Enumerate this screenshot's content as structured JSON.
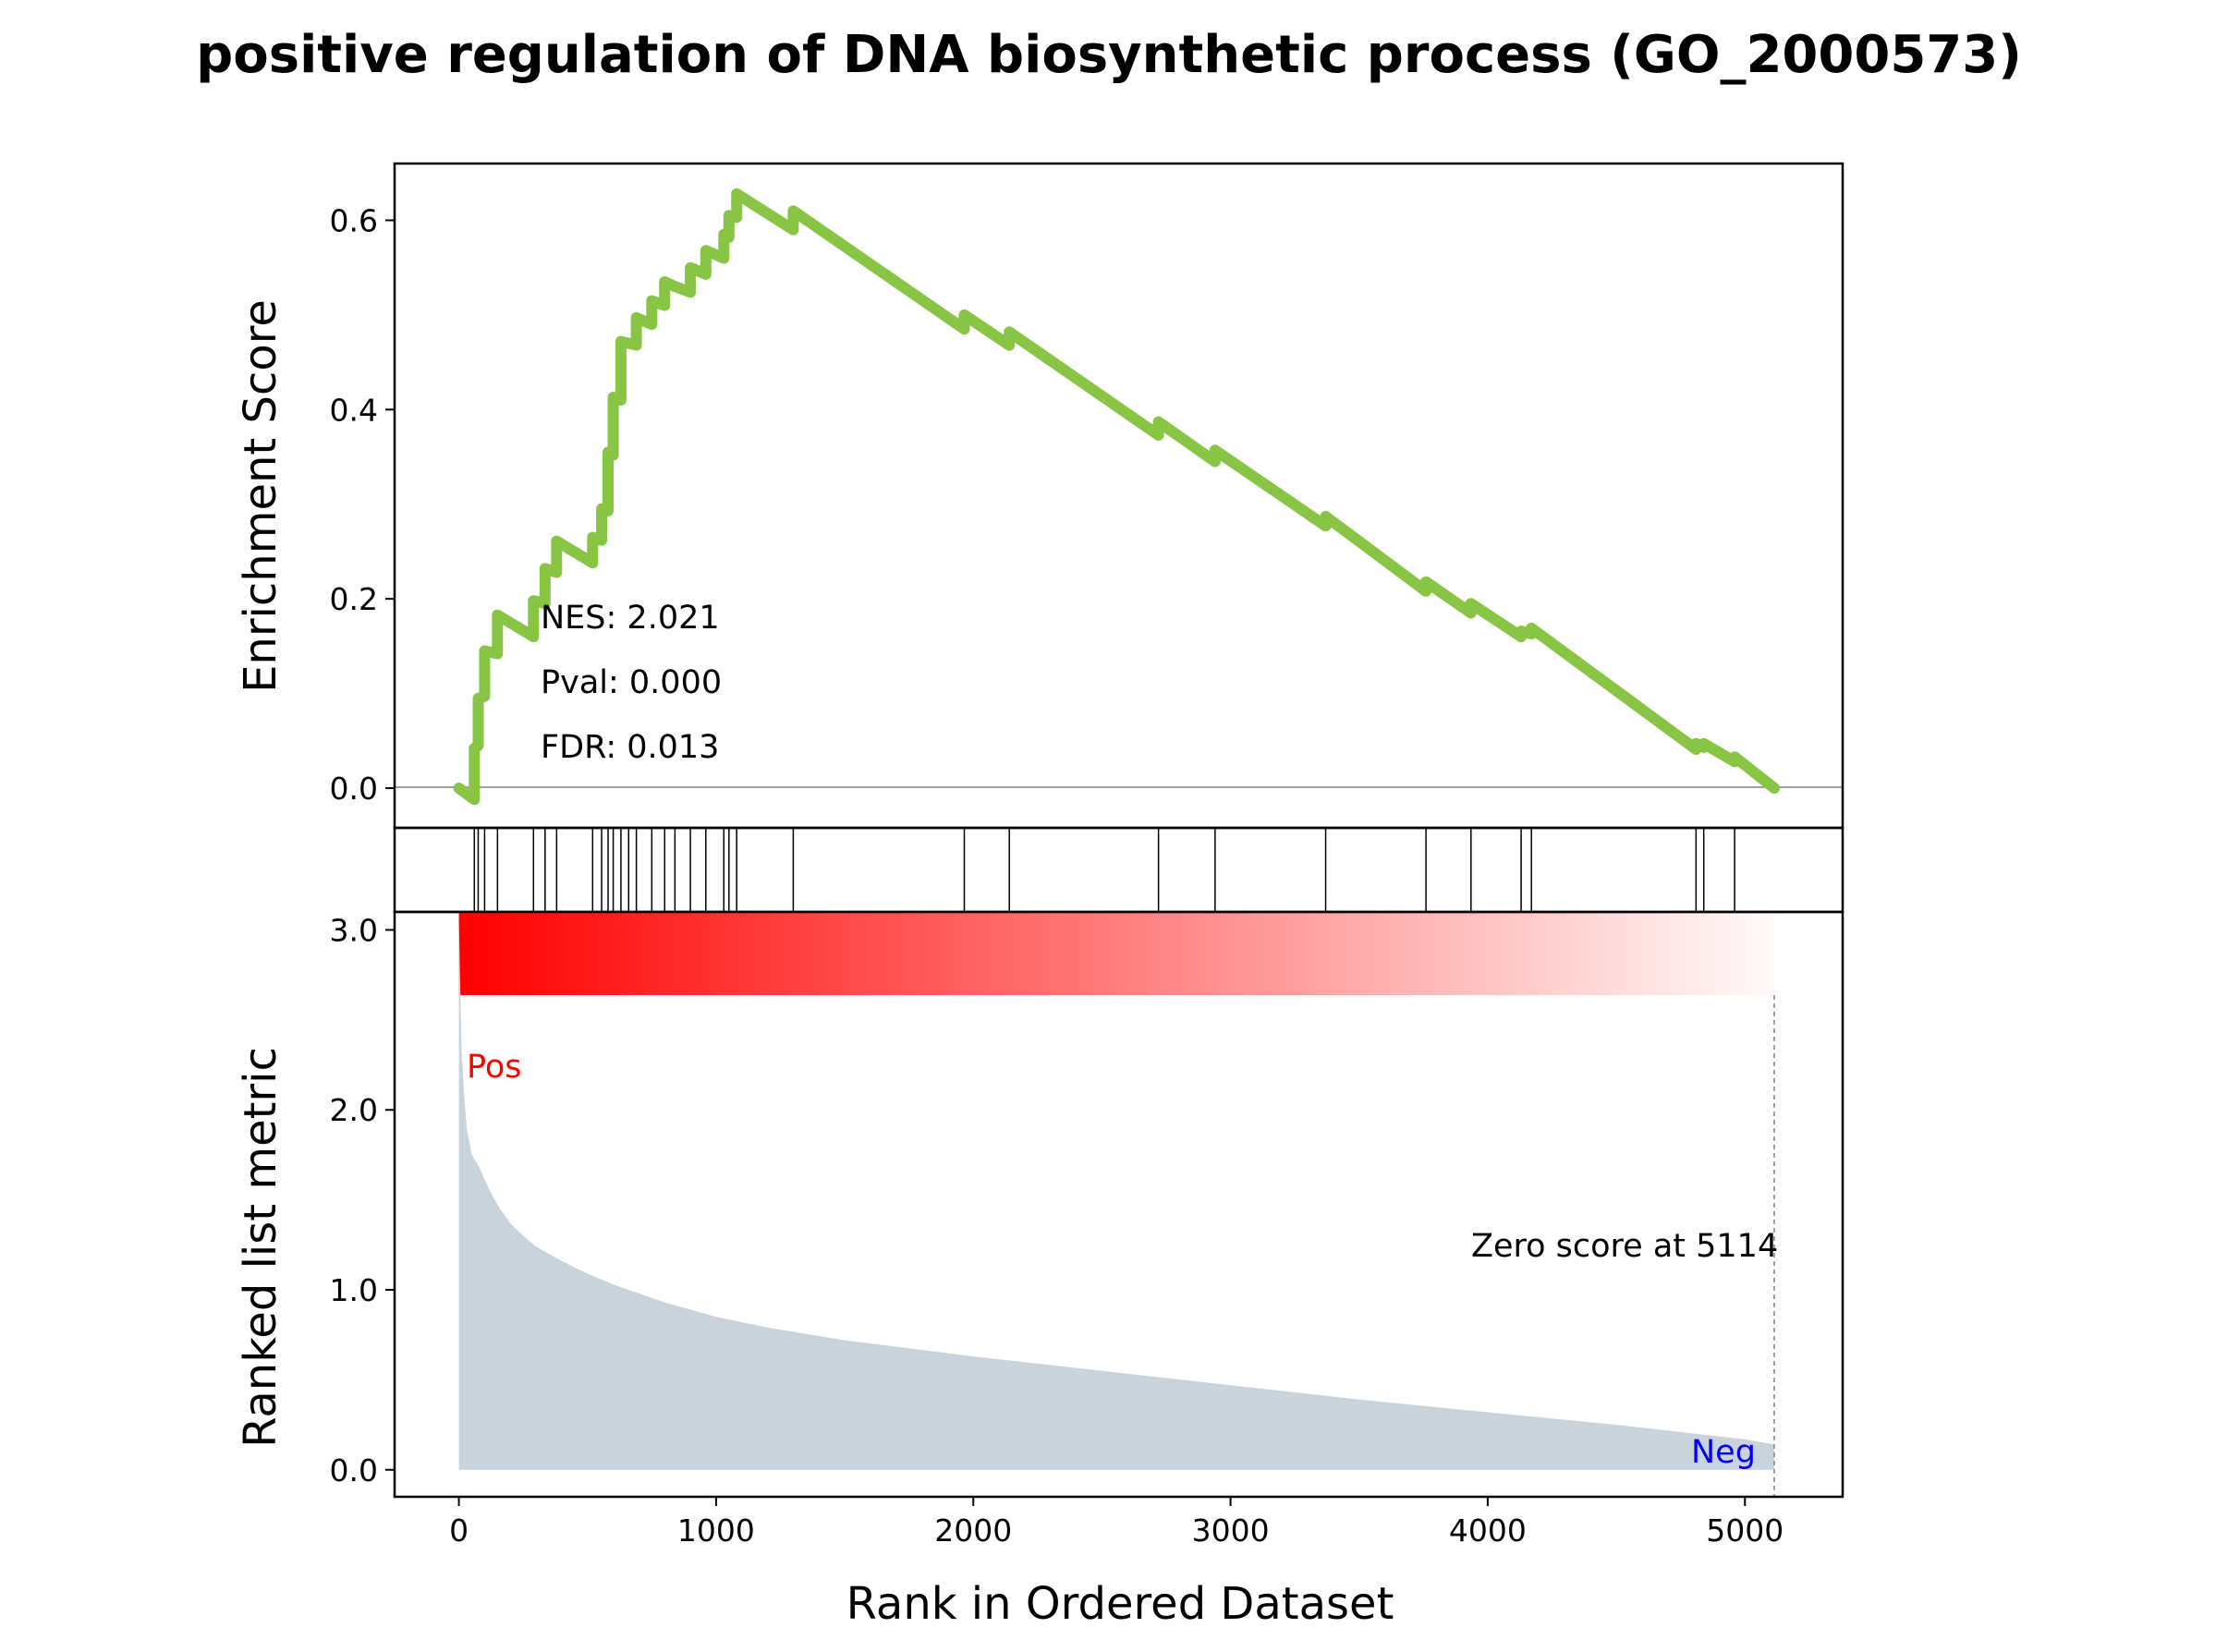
{
  "colors": {
    "es_line": "#88c544",
    "metric_fill": "#c9d3dc",
    "pos": "#ff0000",
    "neg": "#0000ff",
    "zero_line": "#808080"
  },
  "chart_data": {
    "type": "line",
    "title": "positive regulation of DNA biosynthetic process (GO_2000573)",
    "xlabel": "Rank in Ordered Dataset",
    "xlim": [
      -250,
      5380
    ],
    "x_ticks": [
      0,
      1000,
      2000,
      3000,
      4000,
      5000
    ],
    "x_tick_labels": [
      "0",
      "1000",
      "2000",
      "3000",
      "4000",
      "5000"
    ],
    "enrichment": {
      "ylabel": "Enrichment Score",
      "ylim": [
        -0.042,
        0.66
      ],
      "y_ticks": [
        0.0,
        0.2,
        0.4,
        0.6
      ],
      "y_tick_labels": [
        "0.0",
        "0.2",
        "0.4",
        "0.6"
      ],
      "hits": [
        60,
        75,
        100,
        150,
        290,
        335,
        380,
        520,
        555,
        580,
        600,
        630,
        660,
        690,
        750,
        800,
        840,
        900,
        960,
        1030,
        1050,
        1080,
        1300,
        1965,
        2140,
        2720,
        2940,
        3370,
        3760,
        3935,
        4130,
        4170,
        4810,
        4840,
        4960
      ],
      "points": [
        [
          0,
          0.0
        ],
        [
          60,
          -0.012
        ],
        [
          60,
          0.042
        ],
        [
          75,
          0.045
        ],
        [
          75,
          0.095
        ],
        [
          100,
          0.097
        ],
        [
          100,
          0.145
        ],
        [
          150,
          0.142
        ],
        [
          150,
          0.183
        ],
        [
          290,
          0.16
        ],
        [
          290,
          0.198
        ],
        [
          335,
          0.195
        ],
        [
          335,
          0.232
        ],
        [
          380,
          0.228
        ],
        [
          380,
          0.261
        ],
        [
          520,
          0.238
        ],
        [
          520,
          0.265
        ],
        [
          555,
          0.262
        ],
        [
          555,
          0.295
        ],
        [
          580,
          0.293
        ],
        [
          580,
          0.355
        ],
        [
          600,
          0.352
        ],
        [
          600,
          0.413
        ],
        [
          630,
          0.41
        ],
        [
          630,
          0.472
        ],
        [
          660,
          0.47
        ],
        [
          690,
          0.468
        ],
        [
          690,
          0.497
        ],
        [
          750,
          0.49
        ],
        [
          750,
          0.515
        ],
        [
          800,
          0.51
        ],
        [
          800,
          0.535
        ],
        [
          840,
          0.53
        ],
        [
          900,
          0.524
        ],
        [
          900,
          0.55
        ],
        [
          960,
          0.543
        ],
        [
          960,
          0.568
        ],
        [
          1030,
          0.56
        ],
        [
          1030,
          0.585
        ],
        [
          1050,
          0.582
        ],
        [
          1050,
          0.605
        ],
        [
          1080,
          0.603
        ],
        [
          1080,
          0.628
        ],
        [
          1300,
          0.59
        ],
        [
          1300,
          0.61
        ],
        [
          1965,
          0.485
        ],
        [
          1965,
          0.5
        ],
        [
          2140,
          0.468
        ],
        [
          2140,
          0.482
        ],
        [
          2720,
          0.373
        ],
        [
          2720,
          0.387
        ],
        [
          2940,
          0.345
        ],
        [
          2940,
          0.357
        ],
        [
          3370,
          0.277
        ],
        [
          3370,
          0.287
        ],
        [
          3760,
          0.208
        ],
        [
          3760,
          0.218
        ],
        [
          3935,
          0.185
        ],
        [
          3935,
          0.195
        ],
        [
          4130,
          0.16
        ],
        [
          4130,
          0.166
        ],
        [
          4170,
          0.163
        ],
        [
          4170,
          0.169
        ],
        [
          4810,
          0.041
        ],
        [
          4810,
          0.047
        ],
        [
          4840,
          0.043
        ],
        [
          4840,
          0.047
        ],
        [
          4960,
          0.028
        ],
        [
          4960,
          0.033
        ],
        [
          5114,
          0.0
        ]
      ]
    },
    "ranked_metric": {
      "ylabel": "Ranked list metric",
      "ylim": [
        -0.15,
        3.1
      ],
      "y_ticks": [
        0.0,
        1.0,
        2.0,
        3.0
      ],
      "y_tick_labels": [
        "0.0",
        "1.0",
        "2.0",
        "3.0"
      ],
      "points": [
        [
          0,
          3.05
        ],
        [
          5,
          2.7
        ],
        [
          10,
          2.35
        ],
        [
          20,
          2.1
        ],
        [
          30,
          1.9
        ],
        [
          50,
          1.75
        ],
        [
          80,
          1.68
        ],
        [
          120,
          1.55
        ],
        [
          160,
          1.45
        ],
        [
          200,
          1.37
        ],
        [
          250,
          1.3
        ],
        [
          300,
          1.24
        ],
        [
          400,
          1.16
        ],
        [
          500,
          1.09
        ],
        [
          600,
          1.03
        ],
        [
          700,
          0.98
        ],
        [
          800,
          0.93
        ],
        [
          1000,
          0.85
        ],
        [
          1200,
          0.79
        ],
        [
          1500,
          0.72
        ],
        [
          2000,
          0.63
        ],
        [
          2500,
          0.55
        ],
        [
          3000,
          0.47
        ],
        [
          3500,
          0.39
        ],
        [
          4000,
          0.32
        ],
        [
          4500,
          0.25
        ],
        [
          5000,
          0.17
        ],
        [
          5114,
          0.14
        ]
      ],
      "zero_score_rank": 5114,
      "zero_score_label": "Zero score at 5114",
      "pos_label": "Pos",
      "neg_label": "Neg"
    },
    "stats": {
      "nes": "NES: 2.021",
      "pval": "Pval: 0.000",
      "fdr": "FDR: 0.013"
    }
  }
}
